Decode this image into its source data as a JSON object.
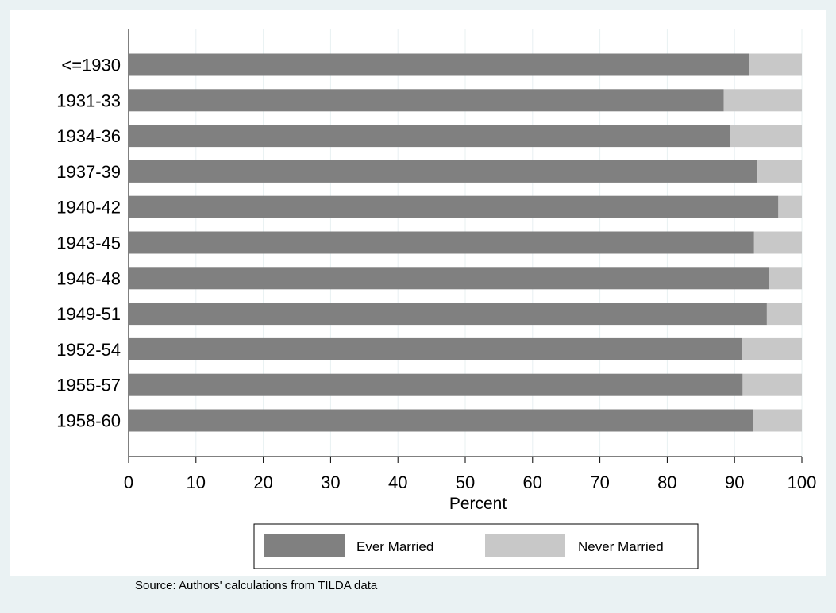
{
  "chart_data": {
    "type": "bar",
    "orientation": "horizontal",
    "stacked": true,
    "categories": [
      "<=1930",
      "1931-33",
      "1934-36",
      "1937-39",
      "1940-42",
      "1943-45",
      "1946-48",
      "1949-51",
      "1952-54",
      "1955-57",
      "1958-60"
    ],
    "series": [
      {
        "name": "Ever Married",
        "color": "#808080",
        "values": [
          92.1,
          88.4,
          89.3,
          93.4,
          96.5,
          92.9,
          95.1,
          94.8,
          91.1,
          91.2,
          92.8
        ]
      },
      {
        "name": "Never Married",
        "color": "#c8c8c8",
        "values": [
          7.9,
          11.6,
          10.7,
          6.6,
          3.5,
          7.1,
          4.9,
          5.2,
          8.9,
          8.8,
          7.2
        ]
      }
    ],
    "xlabel": "Percent",
    "xlim": [
      0,
      100
    ],
    "xticks": [
      0,
      10,
      20,
      30,
      40,
      50,
      60,
      70,
      80,
      90,
      100
    ],
    "grid": true,
    "legend": "bottom",
    "note": "Source: Authors' calculations from TILDA data"
  },
  "colors": {
    "outer_background": "#eaf2f3",
    "plot_background": "#ffffff",
    "gridline": "#e8f0f2"
  }
}
